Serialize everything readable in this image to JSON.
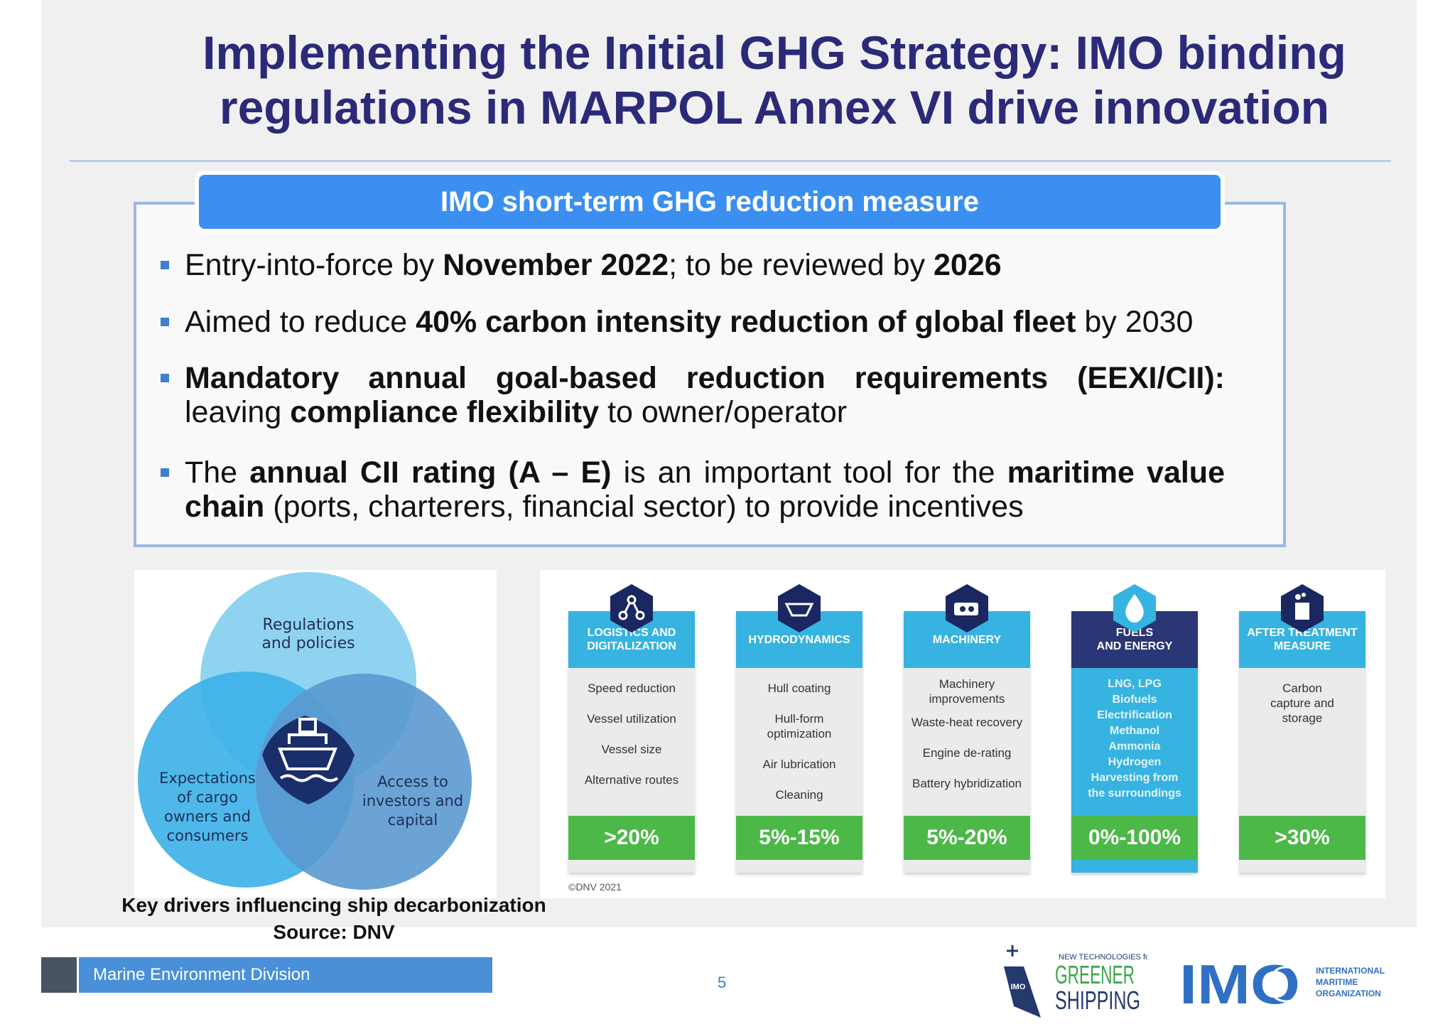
{
  "title": {
    "line1": "Implementing the Initial GHG Strategy: IMO binding",
    "line2": "regulations in MARPOL Annex VI drive innovation"
  },
  "measure_box": {
    "heading": "IMO short-term GHG reduction measure",
    "bullets": [
      {
        "parts": [
          "Entry-into-force by ",
          "November 2022",
          "; to be reviewed by ",
          "2026"
        ]
      },
      {
        "parts": [
          "Aimed to reduce ",
          "40% carbon intensity reduction of global fleet",
          " by 2030"
        ]
      },
      {
        "parts": [
          "Mandatory annual goal-based reduction requirements (EEXI/CII):",
          " leaving ",
          "compliance flexibility",
          " to owner/operator"
        ]
      },
      {
        "parts": [
          "The ",
          "annual CII rating (A – E)",
          " is an important tool for the ",
          "maritime value chain",
          " (ports, charterers, financial sector) to provide incentives"
        ]
      }
    ]
  },
  "venn": {
    "top": [
      "Regulations",
      "and policies"
    ],
    "left": [
      "Expectations",
      "of cargo",
      "owners and",
      "consumers"
    ],
    "right": [
      "Access to",
      "investors and",
      "capital"
    ],
    "center_icon": "ship-icon",
    "colors": {
      "top": "#8fd3f1",
      "left": "#3fb2e8",
      "right": "#5b99d0",
      "center": "#1a2f6a"
    }
  },
  "caption": {
    "line1": "Key drivers influencing ship decarbonization",
    "line2": "Source: DNV"
  },
  "technologies": [
    {
      "head": [
        "LOGISTICS AND",
        "DIGITALIZATION"
      ],
      "icon": "network-icon",
      "items": [
        "Speed reduction",
        "Vessel utilization",
        "Vessel size",
        "Alternative routes"
      ],
      "pct": ">20%"
    },
    {
      "head": [
        "HYDRODYNAMICS"
      ],
      "icon": "hull-icon",
      "items": [
        "Hull coating",
        "Hull-form optimization",
        "Air lubrication",
        "Cleaning"
      ],
      "pct": "5%-15%"
    },
    {
      "head": [
        "MACHINERY"
      ],
      "icon": "engine-icon",
      "items": [
        "Machinery improvements",
        "Waste-heat recovery",
        "Engine de-rating",
        "Battery hybridization"
      ],
      "pct": "5%-20%"
    },
    {
      "head": [
        "FUELS",
        "AND ENERGY"
      ],
      "icon": "drop-icon",
      "items": [
        "LNG, LPG",
        "Biofuels",
        "Electrification",
        "Methanol",
        "Ammonia",
        "Hydrogen",
        "Harvesting from",
        "the surroundings"
      ],
      "pct": "0%-100%"
    },
    {
      "head": [
        "AFTER TREATMENT",
        "MEASURE"
      ],
      "icon": "chimney-icon",
      "items": [
        "Carbon capture and storage"
      ],
      "pct": ">30%"
    }
  ],
  "copyright": "©DNV 2021",
  "footer": {
    "division": "Marine Environment Division",
    "page": "5"
  },
  "logos": {
    "gs_small": "NEW TECHNOLOGIES for",
    "gs_green": "GREENER",
    "gs_dark": "SHIPPING",
    "gs_badge": "IMO",
    "imo_letters": "IMO",
    "imo_name": [
      "INTERNATIONAL",
      "MARITIME",
      "ORGANIZATION"
    ]
  },
  "colors": {
    "title": "#2b2a78",
    "accent_blue": "#3a8ff0",
    "percent_green": "#4cb848",
    "column_head": "#36b3e0",
    "fuel_head": "#2a3675"
  }
}
